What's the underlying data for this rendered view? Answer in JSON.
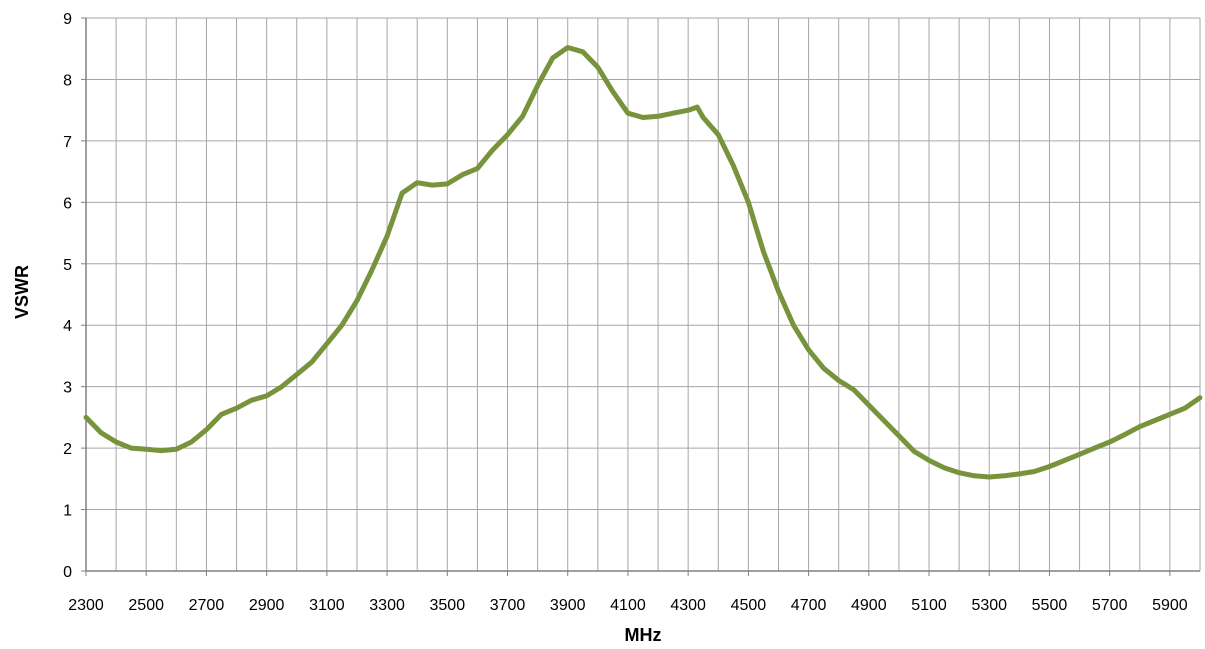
{
  "chart_data": {
    "type": "line",
    "title": "",
    "xlabel": "MHz",
    "ylabel": "VSWR",
    "xlim": [
      2300,
      6000
    ],
    "ylim": [
      0,
      9
    ],
    "grid": true,
    "legend": "none",
    "x_ticks": [
      "2300",
      "2500",
      "2700",
      "2900",
      "3100",
      "3300",
      "3500",
      "3700",
      "3900",
      "4100",
      "4300",
      "4500",
      "4700",
      "4900",
      "5100",
      "5300",
      "5500",
      "5700",
      "5900"
    ],
    "y_ticks": [
      "0",
      "1",
      "2",
      "3",
      "4",
      "5",
      "6",
      "7",
      "8",
      "9"
    ],
    "colors": {
      "series": "#77933C",
      "grid": "#A6A6A6",
      "axis": "#808080"
    },
    "series": [
      {
        "x": [
          2300,
          2350,
          2400,
          2450,
          2500,
          2550,
          2600,
          2650,
          2700,
          2750,
          2800,
          2850,
          2900,
          2950,
          3000,
          3050,
          3100,
          3150,
          3200,
          3250,
          3300,
          3350,
          3400,
          3450,
          3500,
          3550,
          3600,
          3650,
          3700,
          3750,
          3800,
          3850,
          3900,
          3950,
          4000,
          4050,
          4100,
          4150,
          4200,
          4250,
          4300,
          4330,
          4350,
          4400,
          4450,
          4500,
          4550,
          4600,
          4650,
          4700,
          4750,
          4800,
          4850,
          4900,
          4950,
          5000,
          5050,
          5100,
          5150,
          5200,
          5250,
          5300,
          5350,
          5400,
          5450,
          5500,
          5550,
          5600,
          5650,
          5700,
          5750,
          5800,
          5850,
          5900,
          5950,
          6000
        ],
        "values": [
          2.5,
          2.25,
          2.1,
          2.0,
          1.98,
          1.96,
          1.98,
          2.1,
          2.3,
          2.55,
          2.65,
          2.78,
          2.85,
          3.0,
          3.2,
          3.4,
          3.7,
          4.0,
          4.4,
          4.9,
          5.45,
          6.15,
          6.32,
          6.28,
          6.3,
          6.45,
          6.55,
          6.85,
          7.1,
          7.4,
          7.9,
          8.35,
          8.52,
          8.45,
          8.2,
          7.8,
          7.45,
          7.38,
          7.4,
          7.45,
          7.5,
          7.55,
          7.38,
          7.1,
          6.6,
          6.0,
          5.2,
          4.55,
          4.0,
          3.6,
          3.3,
          3.1,
          2.95,
          2.7,
          2.45,
          2.2,
          1.95,
          1.8,
          1.68,
          1.6,
          1.55,
          1.53,
          1.55,
          1.58,
          1.62,
          1.7,
          1.8,
          1.9,
          2.0,
          2.1,
          2.22,
          2.35,
          2.45,
          2.55,
          2.65,
          2.82
        ]
      }
    ]
  }
}
